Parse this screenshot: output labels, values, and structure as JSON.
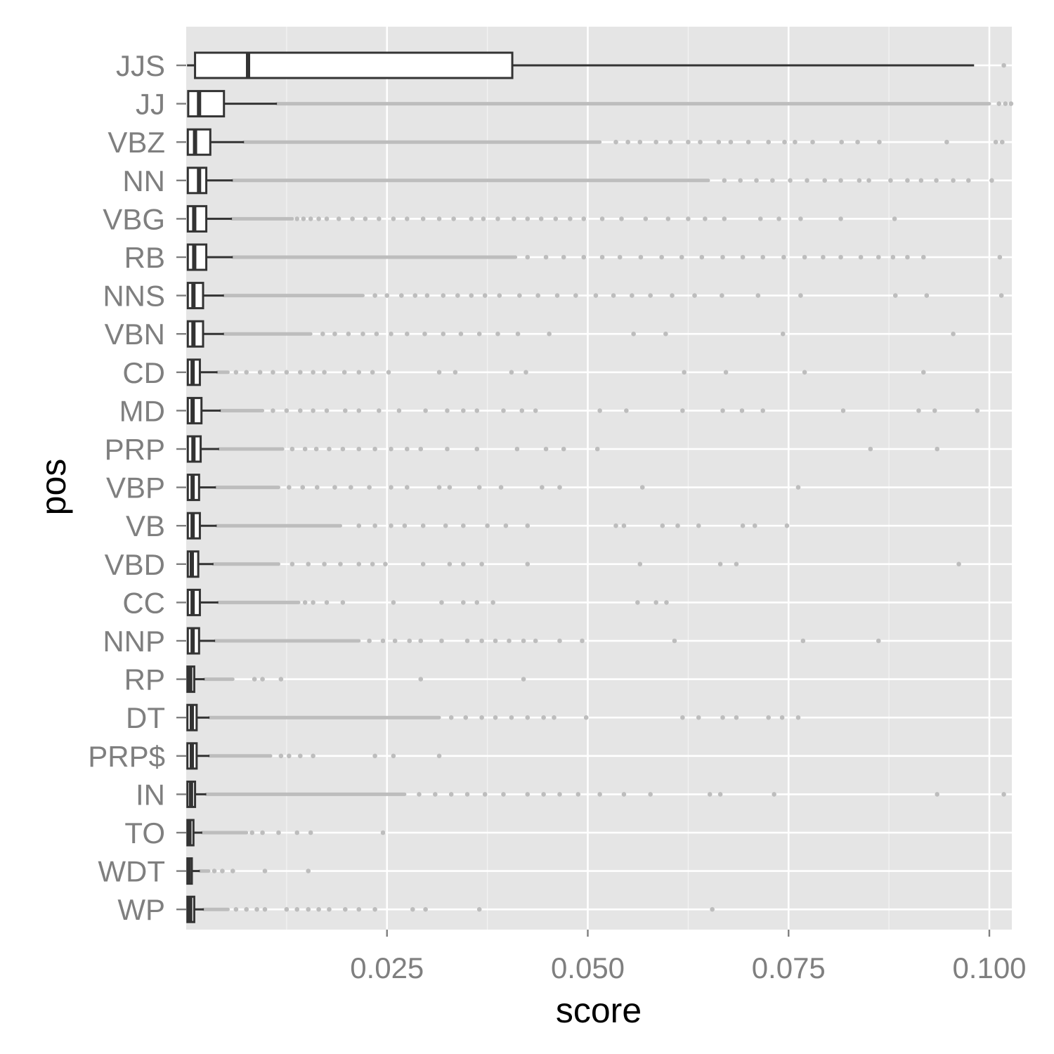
{
  "chart_data": {
    "type": "boxplot",
    "orientation": "horizontal",
    "xlabel": "score",
    "ylabel": "pos",
    "xlim": [
      0.0,
      0.1028
    ],
    "x_major_ticks": [
      0.025,
      0.05,
      0.075,
      0.1
    ],
    "x_tick_labels": [
      "0.025",
      "0.050",
      "0.075",
      "0.100"
    ],
    "x_minor_ticks": [
      0.0125,
      0.0375,
      0.0625,
      0.0875
    ],
    "grid": true,
    "colors": {
      "panel": "#e5e5e5",
      "grid": "#ffffff",
      "box_line": "#333333",
      "box_fill": "#ffffff",
      "outlier": "#bdbdbd",
      "label": "#7f7f7f"
    },
    "categories": [
      "JJS",
      "JJ",
      "VBZ",
      "NN",
      "VBG",
      "RB",
      "NNS",
      "VBN",
      "CD",
      "MD",
      "PRP",
      "VBP",
      "VB",
      "VBD",
      "CC",
      "NNP",
      "RP",
      "DT",
      "PRP$",
      "IN",
      "TO",
      "WDT",
      "WP"
    ],
    "boxes": [
      {
        "label": "JJS",
        "min": 0.0001,
        "q1": 0.0011,
        "median": 0.0077,
        "q3": 0.0406,
        "max": 0.0981,
        "outlier_band": null,
        "outliers": [
          0.1018
        ]
      },
      {
        "label": "JJ",
        "min": 0.00015,
        "q1": 0.00025,
        "median": 0.0016,
        "q3": 0.0047,
        "max": 0.0113,
        "outlier_band": [
          0.0113,
          0.1
        ],
        "outliers": [
          0.1012,
          0.102,
          0.1027
        ]
      },
      {
        "label": "VBZ",
        "min": 0.0001,
        "q1": 0.0002,
        "median": 0.0011,
        "q3": 0.003,
        "max": 0.0072,
        "outlier_band": [
          0.0072,
          0.0515
        ],
        "outliers": [
          0.0535,
          0.055,
          0.0565,
          0.0585,
          0.0603,
          0.0625,
          0.064,
          0.0663,
          0.0678,
          0.07,
          0.0725,
          0.0745,
          0.0758,
          0.078,
          0.0816,
          0.0836,
          0.0863,
          0.0947,
          0.1008,
          0.1016
        ]
      },
      {
        "label": "NN",
        "min": 0.0001,
        "q1": 0.0002,
        "median": 0.0016,
        "q3": 0.0025,
        "max": 0.0058,
        "outlier_band": [
          0.0058,
          0.065
        ],
        "outliers": [
          0.067,
          0.069,
          0.071,
          0.073,
          0.0752,
          0.0773,
          0.0795,
          0.0815,
          0.0838,
          0.085,
          0.0877,
          0.0898,
          0.0915,
          0.0934,
          0.0955,
          0.0974,
          0.1003
        ]
      },
      {
        "label": "VBG",
        "min": 0.0001,
        "q1": 0.0002,
        "median": 0.001,
        "q3": 0.0025,
        "max": 0.0057,
        "outlier_band": [
          0.0057,
          0.0132
        ],
        "outliers": [
          0.0138,
          0.0146,
          0.0155,
          0.0165,
          0.0175,
          0.019,
          0.0207,
          0.0223,
          0.024,
          0.0258,
          0.0275,
          0.0295,
          0.0315,
          0.0333,
          0.0355,
          0.037,
          0.0388,
          0.0408,
          0.0425,
          0.0442,
          0.046,
          0.0478,
          0.0495,
          0.0518,
          0.0542,
          0.0572,
          0.06,
          0.0625,
          0.0646,
          0.067,
          0.0715,
          0.0738,
          0.0765,
          0.0815,
          0.0882
        ]
      },
      {
        "label": "RB",
        "min": 0.0001,
        "q1": 0.0002,
        "median": 0.001,
        "q3": 0.0025,
        "max": 0.0058,
        "outlier_band": [
          0.0058,
          0.041
        ],
        "outliers": [
          0.0425,
          0.0448,
          0.047,
          0.0495,
          0.0518,
          0.054,
          0.0566,
          0.0592,
          0.0617,
          0.0642,
          0.0668,
          0.0693,
          0.0718,
          0.0744,
          0.077,
          0.0793,
          0.0815,
          0.084,
          0.0862,
          0.088,
          0.0898,
          0.0918,
          0.1013
        ]
      },
      {
        "label": "NNS",
        "min": 0.0001,
        "q1": 0.0002,
        "median": 0.0009,
        "q3": 0.0021,
        "max": 0.0047,
        "outlier_band": [
          0.0047,
          0.022
        ],
        "outliers": [
          0.0235,
          0.025,
          0.0268,
          0.0285,
          0.03,
          0.032,
          0.0338,
          0.0355,
          0.0372,
          0.039,
          0.0415,
          0.0438,
          0.0462,
          0.0485,
          0.051,
          0.0532,
          0.0555,
          0.0578,
          0.0605,
          0.0633,
          0.0667,
          0.0712,
          0.0765,
          0.0883,
          0.0922,
          0.1015
        ]
      },
      {
        "label": "VBN",
        "min": 0.0001,
        "q1": 0.0002,
        "median": 0.0009,
        "q3": 0.0021,
        "max": 0.0047,
        "outlier_band": [
          0.0047,
          0.0155
        ],
        "outliers": [
          0.017,
          0.0185,
          0.0202,
          0.022,
          0.0237,
          0.0255,
          0.0275,
          0.0297,
          0.032,
          0.0342,
          0.0365,
          0.0388,
          0.0413,
          0.0452,
          0.0557,
          0.0597,
          0.0743,
          0.0955
        ]
      },
      {
        "label": "CD",
        "min": 0.0001,
        "q1": 0.0002,
        "median": 0.0008,
        "q3": 0.0017,
        "max": 0.0039,
        "outlier_band": [
          0.0039,
          0.0052
        ],
        "outliers": [
          0.0062,
          0.0075,
          0.0092,
          0.0108,
          0.0125,
          0.0142,
          0.0158,
          0.0172,
          0.0197,
          0.0215,
          0.0232,
          0.0252,
          0.0315,
          0.0335,
          0.0405,
          0.0423,
          0.062,
          0.0672,
          0.077,
          0.0918
        ]
      },
      {
        "label": "MD",
        "min": 0.0001,
        "q1": 0.0002,
        "median": 0.0008,
        "q3": 0.0019,
        "max": 0.0043,
        "outlier_band": [
          0.0043,
          0.0095
        ],
        "outliers": [
          0.0108,
          0.0125,
          0.0142,
          0.0158,
          0.0175,
          0.0198,
          0.0215,
          0.024,
          0.0265,
          0.0298,
          0.0325,
          0.0345,
          0.0362,
          0.0395,
          0.0418,
          0.0435,
          0.0515,
          0.0548,
          0.0618,
          0.0668,
          0.0692,
          0.0718,
          0.0818,
          0.0912,
          0.0932,
          0.0985
        ]
      },
      {
        "label": "PRP",
        "min": 0.0001,
        "q1": 0.0002,
        "median": 0.0009,
        "q3": 0.0018,
        "max": 0.0041,
        "outlier_band": [
          0.0041,
          0.012
        ],
        "outliers": [
          0.0132,
          0.0148,
          0.0162,
          0.0178,
          0.0195,
          0.0215,
          0.0235,
          0.0255,
          0.0275,
          0.0292,
          0.0325,
          0.0362,
          0.0412,
          0.0448,
          0.047,
          0.0512,
          0.0852,
          0.0935
        ]
      },
      {
        "label": "VBP",
        "min": 0.0001,
        "q1": 0.0002,
        "median": 0.0008,
        "q3": 0.0016,
        "max": 0.0037,
        "outlier_band": [
          0.0037,
          0.0115
        ],
        "outliers": [
          0.0128,
          0.0145,
          0.0163,
          0.0185,
          0.0205,
          0.0228,
          0.0255,
          0.0275,
          0.0315,
          0.0328,
          0.0365,
          0.0392,
          0.0443,
          0.0465,
          0.0568,
          0.0762
        ]
      },
      {
        "label": "VB",
        "min": 0.0001,
        "q1": 0.0002,
        "median": 0.0008,
        "q3": 0.0017,
        "max": 0.0038,
        "outlier_band": [
          0.0038,
          0.0192
        ],
        "outliers": [
          0.0215,
          0.0235,
          0.0255,
          0.0272,
          0.0295,
          0.0323,
          0.0345,
          0.0375,
          0.0398,
          0.0425,
          0.0535,
          0.0545,
          0.0593,
          0.0612,
          0.0638,
          0.0693,
          0.0708,
          0.0748
        ]
      },
      {
        "label": "VBD",
        "min": 0.0001,
        "q1": 0.0002,
        "median": 0.0007,
        "q3": 0.0015,
        "max": 0.0034,
        "outlier_band": [
          0.0034,
          0.0115
        ],
        "outliers": [
          0.0132,
          0.0152,
          0.0172,
          0.0192,
          0.0215,
          0.0232,
          0.0248,
          0.0295,
          0.0328,
          0.0345,
          0.0368,
          0.0425,
          0.0565,
          0.0665,
          0.0685,
          0.0962
        ]
      },
      {
        "label": "CC",
        "min": 0.0001,
        "q1": 0.0002,
        "median": 0.0008,
        "q3": 0.0017,
        "max": 0.004,
        "outlier_band": [
          0.004,
          0.014
        ],
        "outliers": [
          0.0148,
          0.0158,
          0.0175,
          0.0195,
          0.0258,
          0.0318,
          0.0345,
          0.0362,
          0.0382,
          0.0562,
          0.0585,
          0.0598
        ]
      },
      {
        "label": "NNP",
        "min": 0.0001,
        "q1": 0.0002,
        "median": 0.0008,
        "q3": 0.0016,
        "max": 0.0036,
        "outlier_band": [
          0.0036,
          0.0215
        ],
        "outliers": [
          0.0228,
          0.0245,
          0.026,
          0.0278,
          0.0292,
          0.0318,
          0.035,
          0.0368,
          0.0385,
          0.0402,
          0.042,
          0.0435,
          0.0465,
          0.0493,
          0.0608,
          0.0768,
          0.0862
        ]
      },
      {
        "label": "RP",
        "min": 0.0001,
        "q1": 0.00015,
        "median": 0.0005,
        "q3": 0.001,
        "max": 0.0023,
        "outlier_band": [
          0.0023,
          0.0058
        ],
        "outliers": [
          0.0085,
          0.0095,
          0.0118,
          0.0292,
          0.042
        ]
      },
      {
        "label": "DT",
        "min": 0.0001,
        "q1": 0.00015,
        "median": 0.0007,
        "q3": 0.0013,
        "max": 0.0029,
        "outlier_band": [
          0.0029,
          0.0315
        ],
        "outliers": [
          0.033,
          0.0348,
          0.0368,
          0.0385,
          0.0405,
          0.0425,
          0.0445,
          0.0458,
          0.0498,
          0.0618,
          0.0638,
          0.0668,
          0.0685,
          0.0725,
          0.0742,
          0.0762
        ]
      },
      {
        "label": "PRP$",
        "min": 0.0001,
        "q1": 0.00015,
        "median": 0.0007,
        "q3": 0.0013,
        "max": 0.0029,
        "outlier_band": [
          0.0029,
          0.0105
        ],
        "outliers": [
          0.0118,
          0.0128,
          0.0142,
          0.0158,
          0.0235,
          0.0258,
          0.0315
        ]
      },
      {
        "label": "IN",
        "min": 0.0001,
        "q1": 0.00015,
        "median": 0.0006,
        "q3": 0.0011,
        "max": 0.0025,
        "outlier_band": [
          0.0025,
          0.0272
        ],
        "outliers": [
          0.029,
          0.031,
          0.033,
          0.035,
          0.0372,
          0.0395,
          0.0425,
          0.0445,
          0.0465,
          0.0488,
          0.0515,
          0.0545,
          0.0578,
          0.0652,
          0.0665,
          0.0732,
          0.0935,
          0.1018
        ]
      },
      {
        "label": "TO",
        "min": 0.0001,
        "q1": 0.00015,
        "median": 0.0004,
        "q3": 0.0009,
        "max": 0.002,
        "outlier_band": [
          0.002,
          0.0075
        ],
        "outliers": [
          0.0082,
          0.0095,
          0.0115,
          0.0138,
          0.0155,
          0.0245
        ]
      },
      {
        "label": "WDT",
        "min": 0.0001,
        "q1": 0.00015,
        "median": 0.0003,
        "q3": 0.0007,
        "max": 0.0017,
        "outlier_band": [
          0.0017,
          0.0028
        ],
        "outliers": [
          0.0035,
          0.0045,
          0.0058,
          0.0098,
          0.0152
        ]
      },
      {
        "label": "WP",
        "min": 0.0001,
        "q1": 0.00015,
        "median": 0.0005,
        "q3": 0.001,
        "max": 0.0022,
        "outlier_band": [
          0.0022,
          0.0052
        ],
        "outliers": [
          0.0062,
          0.0075,
          0.0088,
          0.0098,
          0.0125,
          0.0138,
          0.0152,
          0.0165,
          0.0178,
          0.0198,
          0.0215,
          0.0235,
          0.0282,
          0.0298,
          0.0365,
          0.0655
        ]
      }
    ]
  }
}
